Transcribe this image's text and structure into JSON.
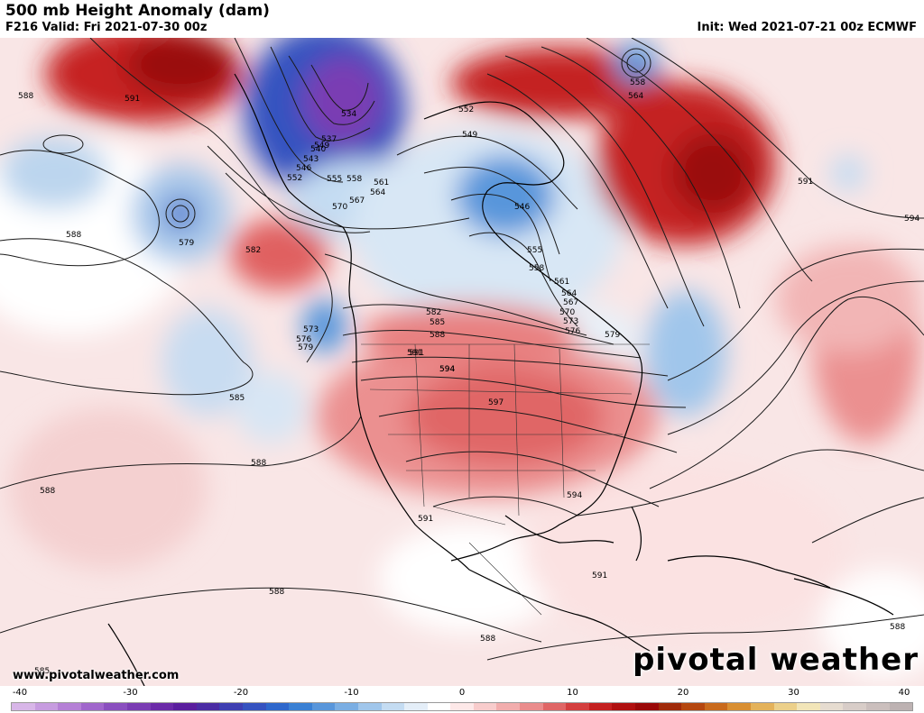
{
  "header": {
    "title": "500 mb Height Anomaly (dam)",
    "valid": "F216 Valid: Fri 2021-07-30 00z",
    "init": "Init: Wed 2021-07-21 00z ECMWF"
  },
  "footer": {
    "credit": "www.pivotalweather.com",
    "brand": "pivotal weather"
  },
  "colorbar": {
    "ticks": [
      "-40",
      "-30",
      "-20",
      "-10",
      "0",
      "10",
      "20",
      "30",
      "40"
    ],
    "colors": [
      "#d8b6e8",
      "#c79ce0",
      "#b580d6",
      "#a066cc",
      "#8a4fbf",
      "#7a3cb3",
      "#6b2aa8",
      "#5a1e9e",
      "#4b2ca4",
      "#3e3fb2",
      "#3552c0",
      "#2e67cc",
      "#3a80d4",
      "#5896db",
      "#7aaee3",
      "#a0c6eb",
      "#c4dcf2",
      "#e4eef8",
      "#ffffff",
      "#fde8e8",
      "#f8cccc",
      "#f2adad",
      "#ea8c8c",
      "#e06666",
      "#d43f3f",
      "#c42020",
      "#b01010",
      "#9a0808",
      "#a02a0a",
      "#b5470f",
      "#c96a1c",
      "#d98f32",
      "#e4b25a",
      "#ecd08a",
      "#f2e5b8",
      "#e6dcd0",
      "#d8cdc8",
      "#cbbfbd",
      "#bdb2b2"
    ]
  },
  "contour_labels": [
    "588",
    "591",
    "534",
    "537",
    "540",
    "543",
    "546",
    "549",
    "552",
    "555",
    "558",
    "561",
    "564",
    "567",
    "570",
    "579",
    "582",
    "573",
    "576",
    "579",
    "585",
    "588",
    "591",
    "594",
    "597",
    "594",
    "591",
    "591",
    "588",
    "588",
    "588",
    "588",
    "585",
    "555",
    "558",
    "561",
    "564",
    "567",
    "570",
    "573",
    "576",
    "579",
    "582",
    "585",
    "588",
    "591",
    "594",
    "546",
    "549",
    "552",
    "558",
    "564",
    "591",
    "594",
    "588"
  ]
}
